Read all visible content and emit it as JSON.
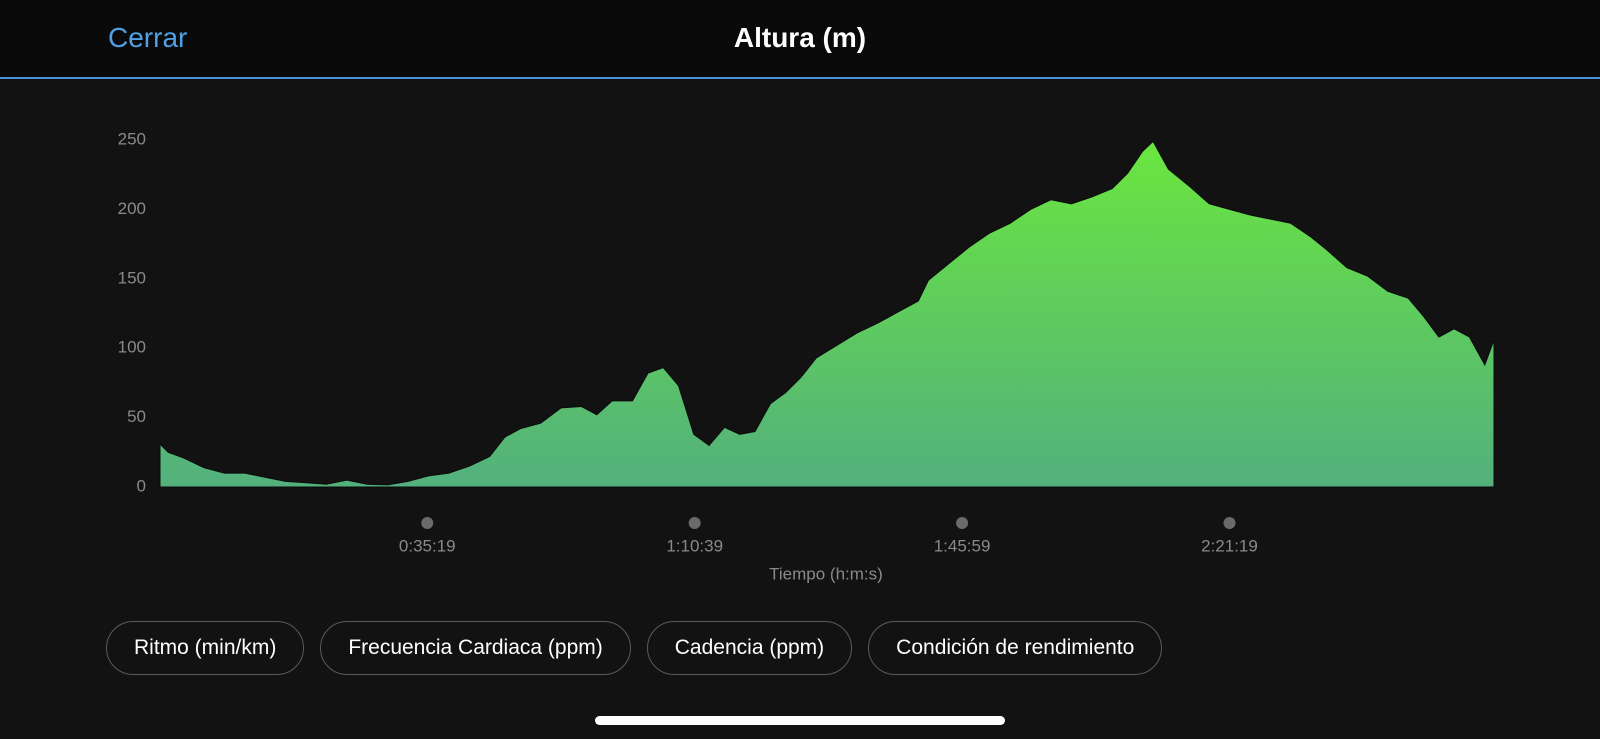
{
  "header": {
    "close": "Cerrar",
    "title": "Altura (m)"
  },
  "chart_data": {
    "type": "area",
    "x_label": "Tiempo (h:m:s)",
    "x": [
      0,
      65,
      186,
      348,
      510,
      672,
      833,
      995,
      1157,
      1319,
      1481,
      1643,
      1805,
      1966,
      2128,
      2290,
      2452,
      2614,
      2735,
      2857,
      3018,
      3180,
      3342,
      3463,
      3584,
      3746,
      3868,
      3989,
      4111,
      4232,
      4353,
      4475,
      4596,
      4717,
      4839,
      4960,
      5082,
      5203,
      5365,
      5527,
      5688,
      5850,
      6012,
      6093,
      6255,
      6417,
      6578,
      6740,
      6902,
      7064,
      7226,
      7388,
      7549,
      7671,
      7792,
      7873,
      7994,
      8156,
      8318,
      8480,
      8642,
      8804,
      8965,
      9127,
      9249,
      9410,
      9572,
      9734,
      9896,
      10017,
      10139,
      10260,
      10382,
      10503,
      10576
    ],
    "values": [
      31,
      25,
      21,
      14,
      10,
      10,
      7,
      4,
      3,
      2,
      5,
      2,
      1.5,
      4,
      8,
      10,
      15,
      22,
      36,
      42,
      46,
      57,
      58,
      52,
      62,
      62,
      82,
      86,
      73,
      38,
      30,
      43,
      38,
      40,
      60,
      68,
      79,
      93,
      102,
      111,
      118,
      126,
      134,
      149,
      161,
      173,
      183,
      190,
      200,
      207,
      204,
      209,
      215,
      226,
      242,
      249,
      229,
      217,
      204,
      200,
      196,
      193,
      190,
      180,
      171,
      158,
      152,
      141,
      136,
      123,
      108,
      114,
      108,
      88,
      106
    ],
    "color_top": "#6ae63f",
    "color_bottom": "#53b07d",
    "xlim": [
      0,
      10576
    ],
    "xticks": [
      {
        "value": 2119,
        "label": "0:35:19"
      },
      {
        "value": 4239,
        "label": "1:10:39"
      },
      {
        "value": 6359,
        "label": "1:45:59"
      },
      {
        "value": 8479,
        "label": "2:21:19"
      }
    ],
    "ylim": [
      0,
      250
    ],
    "yticks": [
      0,
      50,
      100,
      150,
      200,
      250
    ]
  },
  "buttons": [
    "Ritmo (min/km)",
    "Frecuencia Cardiaca (ppm)",
    "Cadencia (ppm)",
    "Condición de rendimiento"
  ]
}
